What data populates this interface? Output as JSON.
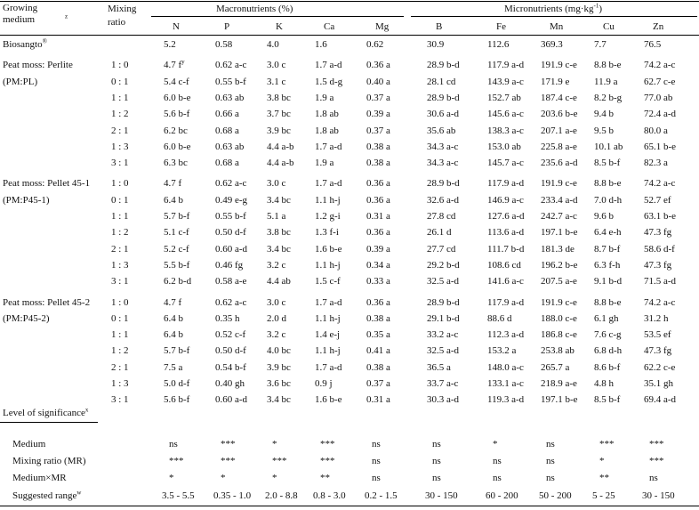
{
  "header": {
    "growing_medium": "Growing medium",
    "growing_medium_sup": "z",
    "mixing_ratio": "Mixing ratio",
    "macronutrients": "Macronutrients (%)",
    "micronutrients": "Micronutrients (mg·kg",
    "micronutrients_sup": "-1",
    "micronutrients_close": ")",
    "columns": [
      "N",
      "P",
      "K",
      "Ca",
      "Mg",
      "B",
      "Fe",
      "Mn",
      "Cu",
      "Zn"
    ]
  },
  "groups": [
    {
      "label": "Biosangto",
      "label_sup": "®",
      "sub": "",
      "rows": [
        {
          "ratio": "",
          "values": [
            "5.2",
            "0.58",
            "4.0",
            "1.6",
            "0.62",
            "30.9",
            "112.6",
            "369.3",
            "7.7",
            "76.5"
          ]
        }
      ]
    },
    {
      "label": "Peat moss: Perlite",
      "label_sup": "",
      "sub": "(PM:PL)",
      "rows": [
        {
          "ratio": "1 : 0",
          "values": [
            "4.7 f",
            "0.62 a-c",
            "3.0 c",
            "1.7 a-d",
            "0.36 a",
            "28.9 b-d",
            "117.9 a-d",
            "191.9 c-e",
            "8.8 b-e",
            "74.2 a-c"
          ],
          "first_sup": "y"
        },
        {
          "ratio": "0 : 1",
          "values": [
            "5.4 c-f",
            "0.55 b-f",
            "3.1 c",
            "1.5 d-g",
            "0.40 a",
            "28.1 cd",
            "143.9 a-c",
            "171.9 e",
            "11.9 a",
            "62.7 c-e"
          ]
        },
        {
          "ratio": "1 : 1",
          "values": [
            "6.0 b-e",
            "0.63 ab",
            "3.8 bc",
            "1.9 a",
            "0.37 a",
            "28.9 b-d",
            "152.7 ab",
            "187.4 c-e",
            "8.2 b-g",
            "77.0 ab"
          ]
        },
        {
          "ratio": "1 : 2",
          "values": [
            "5.6 b-f",
            "0.66 a",
            "3.7 bc",
            "1.8 ab",
            "0.39 a",
            "30.6 a-d",
            "145.6 a-c",
            "203.6 b-e",
            "9.4 b",
            "72.4 a-d"
          ]
        },
        {
          "ratio": "2 : 1",
          "values": [
            "6.2 bc",
            "0.68 a",
            "3.9 bc",
            "1.8 ab",
            "0.37 a",
            "35.6 ab",
            "138.3 a-c",
            "207.1 a-e",
            "9.5 b",
            "80.0 a"
          ]
        },
        {
          "ratio": "1 : 3",
          "values": [
            "6.0 b-e",
            "0.63 ab",
            "4.4 a-b",
            "1.7 a-d",
            "0.38 a",
            "34.3 a-c",
            "153.0 ab",
            "225.8 a-e",
            "10.1 ab",
            "65.1 b-e"
          ]
        },
        {
          "ratio": "3 : 1",
          "values": [
            "6.3 bc",
            "0.68 a",
            "4.4 a-b",
            "1.9 a",
            "0.38 a",
            "34.3 a-c",
            "145.7 a-c",
            "235.6 a-d",
            "8.5 b-f",
            "82.3 a"
          ]
        }
      ]
    },
    {
      "label": "Peat moss: Pellet 45-1",
      "label_sup": "",
      "sub": "(PM:P45-1)",
      "rows": [
        {
          "ratio": "1 : 0",
          "values": [
            "4.7 f",
            "0.62 a-c",
            "3.0 c",
            "1.7 a-d",
            "0.36 a",
            "28.9 b-d",
            "117.9 a-d",
            "191.9 c-e",
            "8.8 b-e",
            "74.2 a-c"
          ]
        },
        {
          "ratio": "0 : 1",
          "values": [
            "6.4 b",
            "0.49 e-g",
            "3.4 bc",
            "1.1 h-j",
            "0.36 a",
            "32.6 a-d",
            "146.9 a-c",
            "233.4 a-d",
            "7.0 d-h",
            "52.7 ef"
          ]
        },
        {
          "ratio": "1 : 1",
          "values": [
            "5.7 b-f",
            "0.55 b-f",
            "5.1 a",
            "1.2 g-i",
            "0.31 a",
            "27.8 cd",
            "127.6 a-d",
            "242.7 a-c",
            "9.6 b",
            "63.1 b-e"
          ]
        },
        {
          "ratio": "1 : 2",
          "values": [
            "5.1 c-f",
            "0.50 d-f",
            "3.8 bc",
            "1.3 f-i",
            "0.36 a",
            "26.1 d",
            "113.6 a-d",
            "197.1 b-e",
            "6.4 e-h",
            "47.3 fg"
          ]
        },
        {
          "ratio": "2 : 1",
          "values": [
            "5.2 c-f",
            "0.60 a-d",
            "3.4 bc",
            "1.6 b-e",
            "0.39 a",
            "27.7 cd",
            "111.7 b-d",
            "181.3 de",
            "8.7 b-f",
            "58.6 d-f"
          ]
        },
        {
          "ratio": "1 : 3",
          "values": [
            "5.5 b-f",
            "0.46 fg",
            "3.2 c",
            "1.1 h-j",
            "0.34 a",
            "29.2 b-d",
            "108.6 cd",
            "196.2 b-e",
            "6.3 f-h",
            "47.3 fg"
          ]
        },
        {
          "ratio": "3 : 1",
          "values": [
            "6.2 b-d",
            "0.58 a-e",
            "4.4 ab",
            "1.5 c-f",
            "0.33 a",
            "32.5 a-d",
            "141.6 a-c",
            "207.5 a-e",
            "9.1 b-d",
            "71.5 a-d"
          ]
        }
      ]
    },
    {
      "label": "Peat moss: Pellet 45-2",
      "label_sup": "",
      "sub": "(PM:P45-2)",
      "rows": [
        {
          "ratio": "1 : 0",
          "values": [
            "4.7 f",
            "0.62 a-c",
            "3.0 c",
            "1.7 a-d",
            "0.36 a",
            "28.9 b-d",
            "117.9 a-d",
            "191.9 c-e",
            "8.8 b-e",
            "74.2 a-c"
          ]
        },
        {
          "ratio": "0 : 1",
          "values": [
            "6.4 b",
            "0.35 h",
            "2.0 d",
            "1.1 h-j",
            "0.38 a",
            "29.1 b-d",
            "88.6 d",
            "188.0 c-e",
            "6.1 gh",
            "31.2 h"
          ]
        },
        {
          "ratio": "1 : 1",
          "values": [
            "6.4 b",
            "0.52 c-f",
            "3.2 c",
            "1.4 e-j",
            "0.35 a",
            "33.2 a-c",
            "112.3 a-d",
            "186.8 c-e",
            "7.6 c-g",
            "53.5 ef"
          ]
        },
        {
          "ratio": "1 : 2",
          "values": [
            "5.7 b-f",
            "0.50 d-f",
            "4.0 bc",
            "1.1 h-j",
            "0.41 a",
            "32.5 a-d",
            "153.2 a",
            "253.8 ab",
            "6.8 d-h",
            "47.3 fg"
          ]
        },
        {
          "ratio": "2 : 1",
          "values": [
            "7.5 a",
            "0.54 b-f",
            "3.9 bc",
            "1.7 a-d",
            "0.38 a",
            "36.5 a",
            "148.0 a-c",
            "265.7 a",
            "8.6 b-f",
            "62.2 c-e"
          ]
        },
        {
          "ratio": "1 : 3",
          "values": [
            "5.0 d-f",
            "0.40 gh",
            "3.6 bc",
            "0.9 j",
            "0.37 a",
            "33.7 a-c",
            "133.1 a-c",
            "218.9 a-e",
            "4.8 h",
            "35.1 gh"
          ]
        },
        {
          "ratio": "3 : 1",
          "values": [
            "5.6 b-f",
            "0.60 a-d",
            "3.4 bc",
            "1.6 b-e",
            "0.31 a",
            "30.3 a-d",
            "119.3 a-d",
            "197.1 b-e",
            "8.5 b-f",
            "69.4 a-d"
          ]
        }
      ]
    }
  ],
  "significance": {
    "title": "Level of significance",
    "title_sup": "x",
    "rows": [
      {
        "label": "Medium",
        "values": [
          "ns",
          "***",
          "*",
          "***",
          "ns",
          "ns",
          "*",
          "ns",
          "***",
          "***"
        ]
      },
      {
        "label": "Mixing ratio (MR)",
        "values": [
          "***",
          "***",
          "***",
          "***",
          "ns",
          "ns",
          "ns",
          "ns",
          "*",
          "***"
        ]
      },
      {
        "label": "Medium×MR",
        "values": [
          "*",
          "*",
          "*",
          "**",
          "ns",
          "ns",
          "ns",
          "ns",
          "**",
          "ns"
        ]
      }
    ]
  },
  "suggested": {
    "label": "Suggested range",
    "label_sup": "w",
    "values": [
      "3.5 - 5.5",
      "0.35 - 1.0",
      "2.0 - 8.8",
      "0.8 - 3.0",
      "0.2 - 1.5",
      "30 - 150",
      "60 - 200",
      "50 - 200",
      "5 - 25",
      "30 - 150"
    ]
  }
}
